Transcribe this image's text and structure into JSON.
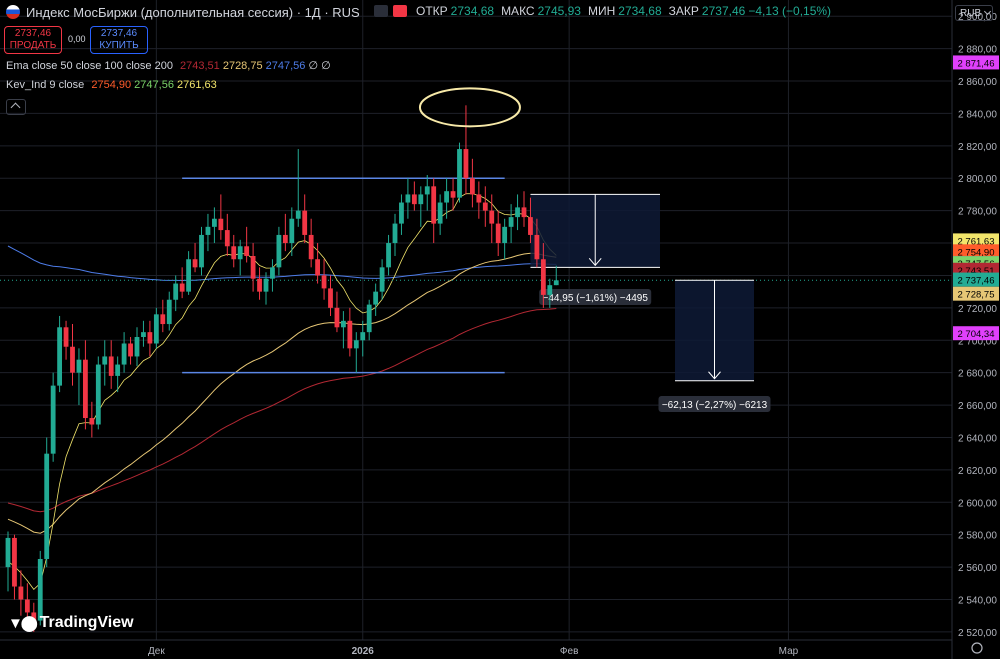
{
  "header": {
    "title": "Индекс МосБиржи (дополнительная сессия) · 1Д · RUS",
    "ohlc": [
      {
        "k": "ОТКР",
        "v": "2734,68"
      },
      {
        "k": "МАКС",
        "v": "2745,93"
      },
      {
        "k": "МИН",
        "v": "2734,68"
      },
      {
        "k": "ЗАКР",
        "v": "2737,46"
      },
      {
        "k": "",
        "v": "−4,13 (−0,15%)"
      }
    ]
  },
  "trade": {
    "sell_price": "2737,46",
    "sell_label": "ПРОДАТЬ",
    "spread": "0,00",
    "buy_price": "2737,46",
    "buy_label": "КУПИТЬ"
  },
  "indicators": {
    "ema_name": "Ema close 50 close 100 close 200",
    "ema_values": [
      "2743,51",
      "2728,75",
      "2747,56",
      "∅",
      "∅"
    ],
    "kev_name": "Kev_Ind 9 close",
    "kev_values": [
      "2754,90",
      "2747,56",
      "2761,63"
    ]
  },
  "currency": "RUB",
  "logo": "TradingView",
  "colors": {
    "up": "#22ab94",
    "down": "#f23645",
    "ema50": "#b22833",
    "ema100": "#e6c675",
    "ema200": "#4d7ce8",
    "kev1": "#ff5c2b",
    "kev2": "#7bd46a",
    "kev3": "#f2e56b",
    "level_line": "#5b86e5",
    "circle": "#f7e9a8"
  },
  "chart_data": {
    "type": "candlestick",
    "ylim": [
      2515,
      2910
    ],
    "y_ticks": [
      "2 520,00",
      "2 540,00",
      "2 560,00",
      "2 580,00",
      "2 600,00",
      "2 620,00",
      "2 640,00",
      "2 660,00",
      "2 680,00",
      "2 700,00",
      "2 720,00",
      "2 740,00",
      "2 760,00",
      "2 780,00",
      "2 800,00",
      "2 820,00",
      "2 840,00",
      "2 860,00",
      "2 880,00",
      "2 900,00"
    ],
    "y_tick_values": [
      2520,
      2540,
      2560,
      2580,
      2600,
      2620,
      2640,
      2660,
      2680,
      2700,
      2720,
      2740,
      2760,
      2780,
      2800,
      2820,
      2840,
      2860,
      2880,
      2900
    ],
    "x_labels": [
      {
        "label": "Дек",
        "idx": 23
      },
      {
        "label": "2026",
        "idx": 55
      },
      {
        "label": "Фев",
        "idx": 87
      },
      {
        "label": "Мар",
        "idx": 121
      }
    ],
    "candles": [
      [
        2560,
        2582,
        2545,
        2578
      ],
      [
        2578,
        2580,
        2540,
        2548
      ],
      [
        2548,
        2558,
        2530,
        2540
      ],
      [
        2540,
        2550,
        2526,
        2532
      ],
      [
        2532,
        2538,
        2520,
        2525
      ],
      [
        2527,
        2570,
        2524,
        2565
      ],
      [
        2565,
        2640,
        2560,
        2630
      ],
      [
        2630,
        2680,
        2625,
        2672
      ],
      [
        2672,
        2715,
        2668,
        2708
      ],
      [
        2708,
        2712,
        2688,
        2696
      ],
      [
        2696,
        2710,
        2672,
        2680
      ],
      [
        2680,
        2695,
        2660,
        2688
      ],
      [
        2688,
        2700,
        2645,
        2652
      ],
      [
        2652,
        2662,
        2640,
        2648
      ],
      [
        2648,
        2690,
        2645,
        2685
      ],
      [
        2685,
        2700,
        2672,
        2690
      ],
      [
        2690,
        2700,
        2670,
        2678
      ],
      [
        2678,
        2690,
        2668,
        2685
      ],
      [
        2685,
        2705,
        2680,
        2698
      ],
      [
        2698,
        2702,
        2685,
        2690
      ],
      [
        2690,
        2708,
        2684,
        2702
      ],
      [
        2702,
        2712,
        2696,
        2705
      ],
      [
        2705,
        2712,
        2690,
        2698
      ],
      [
        2698,
        2720,
        2695,
        2716
      ],
      [
        2716,
        2725,
        2705,
        2710
      ],
      [
        2710,
        2730,
        2706,
        2725
      ],
      [
        2725,
        2740,
        2718,
        2735
      ],
      [
        2735,
        2745,
        2726,
        2730
      ],
      [
        2730,
        2755,
        2728,
        2750
      ],
      [
        2750,
        2760,
        2742,
        2745
      ],
      [
        2745,
        2770,
        2740,
        2765
      ],
      [
        2765,
        2778,
        2755,
        2770
      ],
      [
        2770,
        2782,
        2760,
        2775
      ],
      [
        2775,
        2790,
        2762,
        2768
      ],
      [
        2768,
        2778,
        2752,
        2758
      ],
      [
        2758,
        2765,
        2745,
        2750
      ],
      [
        2750,
        2762,
        2740,
        2758
      ],
      [
        2758,
        2770,
        2748,
        2752
      ],
      [
        2752,
        2760,
        2730,
        2738
      ],
      [
        2738,
        2745,
        2725,
        2730
      ],
      [
        2730,
        2742,
        2722,
        2738
      ],
      [
        2738,
        2750,
        2730,
        2745
      ],
      [
        2745,
        2770,
        2740,
        2765
      ],
      [
        2765,
        2778,
        2755,
        2760
      ],
      [
        2760,
        2782,
        2752,
        2775
      ],
      [
        2775,
        2818,
        2770,
        2780
      ],
      [
        2780,
        2790,
        2760,
        2765
      ],
      [
        2765,
        2775,
        2745,
        2750
      ],
      [
        2750,
        2760,
        2735,
        2740
      ],
      [
        2740,
        2750,
        2725,
        2732
      ],
      [
        2732,
        2740,
        2715,
        2720
      ],
      [
        2720,
        2730,
        2705,
        2708
      ],
      [
        2708,
        2718,
        2695,
        2712
      ],
      [
        2712,
        2720,
        2690,
        2695
      ],
      [
        2695,
        2705,
        2680,
        2700
      ],
      [
        2700,
        2712,
        2690,
        2705
      ],
      [
        2705,
        2725,
        2700,
        2722
      ],
      [
        2722,
        2735,
        2715,
        2730
      ],
      [
        2730,
        2750,
        2725,
        2745
      ],
      [
        2745,
        2765,
        2740,
        2760
      ],
      [
        2760,
        2778,
        2752,
        2772
      ],
      [
        2772,
        2790,
        2765,
        2785
      ],
      [
        2785,
        2800,
        2775,
        2790
      ],
      [
        2790,
        2798,
        2780,
        2784
      ],
      [
        2784,
        2795,
        2770,
        2790
      ],
      [
        2790,
        2802,
        2780,
        2795
      ],
      [
        2795,
        2800,
        2760,
        2772
      ],
      [
        2772,
        2790,
        2765,
        2785
      ],
      [
        2785,
        2800,
        2775,
        2792
      ],
      [
        2792,
        2800,
        2780,
        2788
      ],
      [
        2788,
        2822,
        2785,
        2818
      ],
      [
        2818,
        2845,
        2790,
        2800
      ],
      [
        2800,
        2812,
        2782,
        2790
      ],
      [
        2790,
        2798,
        2775,
        2785
      ],
      [
        2785,
        2795,
        2770,
        2780
      ],
      [
        2780,
        2790,
        2760,
        2772
      ],
      [
        2772,
        2780,
        2752,
        2760
      ],
      [
        2760,
        2775,
        2750,
        2770
      ],
      [
        2770,
        2784,
        2760,
        2776
      ],
      [
        2776,
        2790,
        2768,
        2782
      ],
      [
        2782,
        2792,
        2770,
        2776
      ],
      [
        2776,
        2788,
        2760,
        2765
      ],
      [
        2765,
        2775,
        2745,
        2750
      ],
      [
        2750,
        2760,
        2720,
        2728
      ],
      [
        2728,
        2738,
        2720,
        2734
      ],
      [
        2734,
        2746,
        2734,
        2737
      ]
    ],
    "levels": [
      {
        "price": 2800,
        "from_idx": 27,
        "to_idx": 77
      },
      {
        "price": 2680,
        "from_idx": 27,
        "to_idx": 77
      }
    ],
    "price_tags": [
      {
        "value": "2 871,46",
        "price": 2871.46,
        "color": "#e040fb"
      },
      {
        "value": "2 761,63",
        "price": 2761.63,
        "color": "#f2e56b"
      },
      {
        "value": "2 754,90",
        "price": 2754.9,
        "color": "#ff5c2b"
      },
      {
        "value": "2 747,56",
        "price": 2747.56,
        "color": "#4d7ce8"
      },
      {
        "value": "2 747,56",
        "price": 2747.56,
        "color": "#7bd46a"
      },
      {
        "value": "2 743,51",
        "price": 2743.51,
        "color": "#b22833"
      },
      {
        "value": "2 737,46",
        "price": 2737.46,
        "color": "#22ab94"
      },
      {
        "value": "2 728,75",
        "price": 2728.75,
        "color": "#e6c675"
      },
      {
        "value": "2 704,34",
        "price": 2704.34,
        "color": "#e040fb"
      }
    ],
    "measures": [
      {
        "label": "−44,95 (−1,61%) −4495",
        "from_price": 2790,
        "to_price": 2745
      },
      {
        "label": "−62,13 (−2,27%) −6213",
        "from_price": 2737,
        "to_price": 2675
      }
    ]
  }
}
